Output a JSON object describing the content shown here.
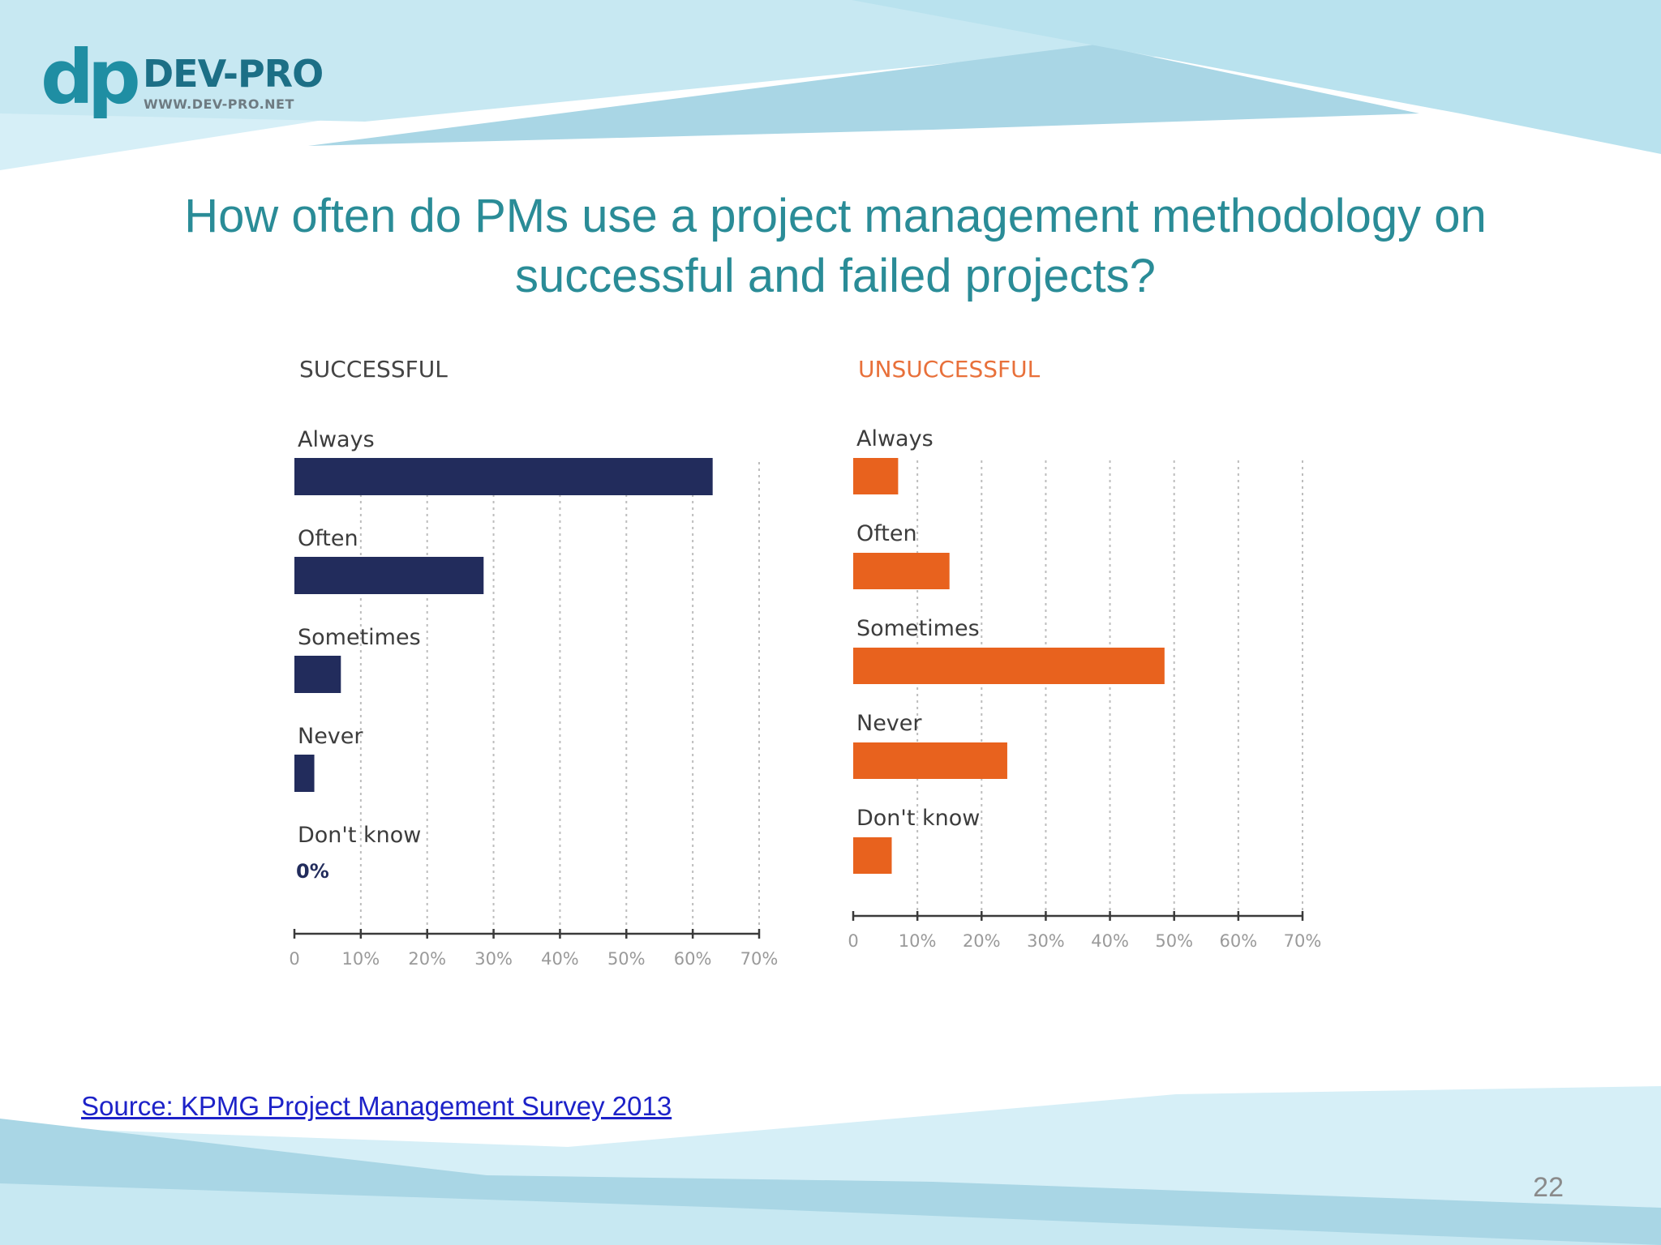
{
  "logo": {
    "mark": "dp",
    "name": "DEV-PRO",
    "url": "WWW.DEV-PRO.NET"
  },
  "slide": {
    "title": "How often do PMs use a project management methodology on successful and failed projects?",
    "source_label": "Source: KPMG Project Management Survey 2013",
    "page_number": "22"
  },
  "colors": {
    "title": "#2a8c97",
    "successful_bar": "#222c5c",
    "unsuccessful_bar": "#e8621e",
    "unsuccessful_title": "#e8703a",
    "source_link": "#1d22c8"
  },
  "chart_data": [
    {
      "type": "bar",
      "orientation": "horizontal",
      "title": "SUCCESSFUL",
      "categories": [
        "Always",
        "Often",
        "Sometimes",
        "Never",
        "Don't know"
      ],
      "values": [
        63,
        28.5,
        7,
        3,
        0
      ],
      "data_labels": [
        "",
        "",
        "",
        "",
        "0%"
      ],
      "x_ticks": [
        0,
        10,
        20,
        30,
        40,
        50,
        60,
        70
      ],
      "x_tick_labels": [
        "0",
        "10%",
        "20%",
        "30%",
        "40%",
        "50%",
        "60%",
        "70%"
      ],
      "xlim": [
        0,
        70
      ],
      "grid": true,
      "color": "#222c5c"
    },
    {
      "type": "bar",
      "orientation": "horizontal",
      "title": "UNSUCCESSFUL",
      "categories": [
        "Always",
        "Often",
        "Sometimes",
        "Never",
        "Don't know"
      ],
      "values": [
        7,
        15,
        48.5,
        24,
        6
      ],
      "data_labels": [
        "",
        "",
        "",
        "",
        ""
      ],
      "x_ticks": [
        0,
        10,
        20,
        30,
        40,
        50,
        60,
        70
      ],
      "x_tick_labels": [
        "0",
        "10%",
        "20%",
        "30%",
        "40%",
        "50%",
        "60%",
        "70%"
      ],
      "xlim": [
        0,
        70
      ],
      "grid": true,
      "color": "#e8621e"
    }
  ]
}
